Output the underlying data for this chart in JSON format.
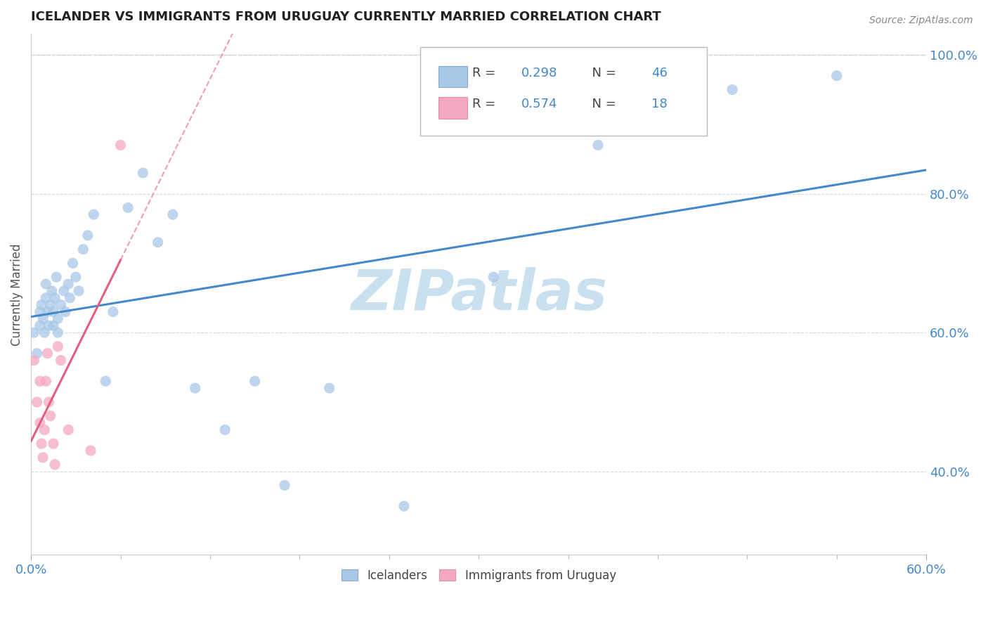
{
  "title": "ICELANDER VS IMMIGRANTS FROM URUGUAY CURRENTLY MARRIED CORRELATION CHART",
  "source": "Source: ZipAtlas.com",
  "ylabel": "Currently Married",
  "xmin": 0.0,
  "xmax": 0.6,
  "ymin": 0.28,
  "ymax": 1.03,
  "icelanders_R": "0.298",
  "icelanders_N": "46",
  "uruguay_R": "0.574",
  "uruguay_N": "18",
  "icelanders_color": "#a8c8e8",
  "uruguay_color": "#f4a8c0",
  "icelanders_line_color": "#4488cc",
  "uruguay_line_color": "#e06080",
  "icelanders_x": [
    0.002,
    0.004,
    0.006,
    0.006,
    0.007,
    0.008,
    0.009,
    0.01,
    0.01,
    0.011,
    0.012,
    0.013,
    0.014,
    0.015,
    0.015,
    0.016,
    0.017,
    0.018,
    0.018,
    0.02,
    0.022,
    0.023,
    0.025,
    0.026,
    0.028,
    0.03,
    0.032,
    0.035,
    0.038,
    0.042,
    0.05,
    0.055,
    0.065,
    0.075,
    0.085,
    0.095,
    0.11,
    0.13,
    0.15,
    0.17,
    0.2,
    0.25,
    0.31,
    0.38,
    0.47,
    0.54
  ],
  "icelanders_y": [
    0.6,
    0.57,
    0.63,
    0.61,
    0.64,
    0.62,
    0.6,
    0.65,
    0.67,
    0.63,
    0.61,
    0.64,
    0.66,
    0.63,
    0.61,
    0.65,
    0.68,
    0.62,
    0.6,
    0.64,
    0.66,
    0.63,
    0.67,
    0.65,
    0.7,
    0.68,
    0.66,
    0.72,
    0.74,
    0.77,
    0.53,
    0.63,
    0.78,
    0.83,
    0.73,
    0.77,
    0.52,
    0.46,
    0.53,
    0.38,
    0.52,
    0.35,
    0.68,
    0.87,
    0.95,
    0.97
  ],
  "uruguay_x": [
    0.002,
    0.004,
    0.006,
    0.006,
    0.007,
    0.008,
    0.009,
    0.01,
    0.011,
    0.012,
    0.013,
    0.015,
    0.016,
    0.018,
    0.02,
    0.025,
    0.04,
    0.06
  ],
  "uruguay_y": [
    0.56,
    0.5,
    0.53,
    0.47,
    0.44,
    0.42,
    0.46,
    0.53,
    0.57,
    0.5,
    0.48,
    0.44,
    0.41,
    0.58,
    0.56,
    0.46,
    0.43,
    0.87
  ],
  "yticks": [
    0.4,
    0.6,
    0.8,
    1.0
  ],
  "ytick_labels": [
    "40.0%",
    "60.0%",
    "80.0%",
    "100.0%"
  ],
  "watermark": "ZIPatlas",
  "watermark_color": "#c8e0f0",
  "legend_R1": "0.298",
  "legend_N1": "46",
  "legend_R2": "0.574",
  "legend_N2": "18"
}
